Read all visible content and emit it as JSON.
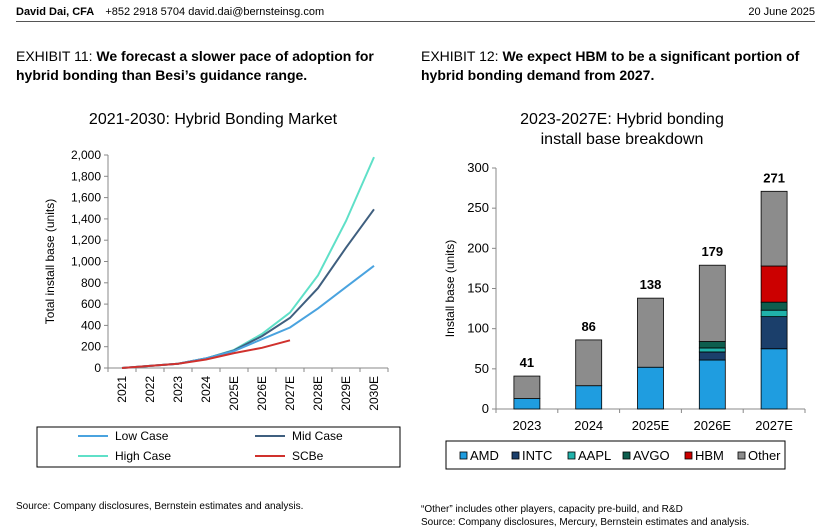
{
  "header": {
    "author": "David Dai, CFA",
    "contact": "+852 2918 5704 david.dai@bernsteinsg.com",
    "date": "20 June 2025"
  },
  "exhibits": {
    "left": {
      "label": "EXHIBIT 11: ",
      "text": "We forecast a slower pace of adoption for hybrid bonding than Besi’s guidance range."
    },
    "right": {
      "label": "EXHIBIT 12: ",
      "text": "We expect HBM to be a significant portion of hybrid bonding demand from 2027."
    }
  },
  "sources": {
    "left": "Source: Company disclosures, Bernstein estimates and analysis.",
    "right_note": "“Other” includes other players, capacity pre-build, and R&D",
    "right": "Source: Company disclosures, Mercury, Bernstein estimates and analysis."
  },
  "chart_data": [
    {
      "type": "line",
      "title": "2021-2030: Hybrid Bonding Market",
      "xlabel": "",
      "ylabel": "Total install base (units)",
      "ylim": [
        0,
        2000
      ],
      "yticks": [
        "0",
        "200",
        "400",
        "600",
        "800",
        "1,000",
        "1,200",
        "1,400",
        "1,600",
        "1,800",
        "2,000"
      ],
      "categories": [
        "2021",
        "2022",
        "2023",
        "2024",
        "2025E",
        "2026E",
        "2027E",
        "2028E",
        "2029E",
        "2030E"
      ],
      "legend_position": "bottom",
      "grid": false,
      "series": [
        {
          "name": "Low Case",
          "color": "#4aa3df",
          "values": [
            0,
            20,
            40,
            90,
            160,
            270,
            380,
            560,
            760,
            960
          ]
        },
        {
          "name": "Mid Case",
          "color": "#3f5f7f",
          "values": [
            0,
            20,
            40,
            90,
            165,
            300,
            470,
            750,
            1130,
            1490
          ]
        },
        {
          "name": "High Case",
          "color": "#5fe0c8",
          "values": [
            0,
            20,
            40,
            90,
            170,
            320,
            520,
            870,
            1380,
            1980
          ]
        },
        {
          "name": "SCBe",
          "color": "#d0312d",
          "values": [
            0,
            20,
            40,
            80,
            140,
            190,
            260,
            null,
            null,
            null
          ]
        }
      ]
    },
    {
      "type": "bar",
      "stacked": true,
      "title": "2023-2027E: Hybrid bonding install base breakdown",
      "title_lines": [
        "2023-2027E: Hybrid bonding",
        "install base breakdown"
      ],
      "xlabel": "",
      "ylabel": "Install base (units)",
      "ylim": [
        0,
        300
      ],
      "yticks": [
        "0",
        "50",
        "100",
        "150",
        "200",
        "250",
        "300"
      ],
      "categories": [
        "2023",
        "2024",
        "2025E",
        "2026E",
        "2027E"
      ],
      "totals": [
        "41",
        "86",
        "138",
        "179",
        "271"
      ],
      "legend_position": "bottom",
      "grid": false,
      "series": [
        {
          "name": "AMD",
          "color": "#1f9de0",
          "values": [
            13,
            29,
            52,
            61,
            75
          ]
        },
        {
          "name": "INTC",
          "color": "#1b3f6b",
          "values": [
            0,
            0,
            0,
            10,
            40
          ]
        },
        {
          "name": "AAPL",
          "color": "#20b2aa",
          "values": [
            0,
            0,
            0,
            5,
            8
          ]
        },
        {
          "name": "AVGO",
          "color": "#0e5e4e",
          "values": [
            0,
            0,
            0,
            8,
            10
          ]
        },
        {
          "name": "HBM",
          "color": "#cc0000",
          "values": [
            0,
            0,
            0,
            0,
            45
          ]
        },
        {
          "name": "Other",
          "color": "#8c8c8c",
          "values": [
            28,
            57,
            86,
            95,
            93
          ]
        }
      ]
    }
  ]
}
